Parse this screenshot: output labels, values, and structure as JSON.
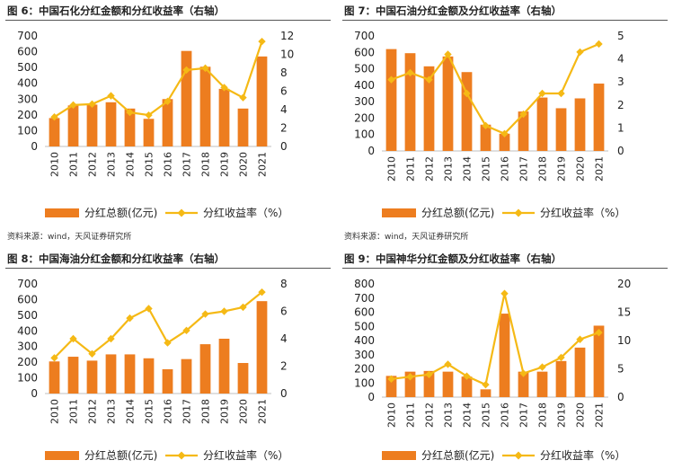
{
  "colors": {
    "bar": "#ed7d1f",
    "line": "#f5b915"
  },
  "source_text": "资料来源：wind，天风证券研究所",
  "chart_data": [
    {
      "type": "bar",
      "title": "图 6：中国石化分红金额和分红收益率（右轴）",
      "categories": [
        "2010",
        "2011",
        "2012",
        "2013",
        "2014",
        "2015",
        "2016",
        "2017",
        "2018",
        "2019",
        "2020",
        "2021"
      ],
      "series": [
        {
          "name": "分红总额(亿元)",
          "type": "bar",
          "axis": "left",
          "values": [
            180,
            260,
            265,
            280,
            240,
            175,
            300,
            605,
            505,
            365,
            240,
            570
          ]
        },
        {
          "name": "分红收益率（%）",
          "type": "line",
          "axis": "right",
          "values": [
            3.2,
            4.5,
            4.6,
            5.5,
            3.7,
            3.4,
            4.9,
            8.3,
            8.5,
            6.4,
            5.3,
            11.4
          ]
        }
      ],
      "ylim": [
        0,
        700
      ],
      "yticks": [
        0,
        100,
        200,
        300,
        400,
        500,
        600,
        700
      ],
      "y2lim": [
        0,
        12
      ],
      "y2ticks": [
        0,
        2,
        4,
        6,
        8,
        10,
        12
      ]
    },
    {
      "type": "bar",
      "title": "图 7：中国石油分红金额及分红收益率（右轴）",
      "categories": [
        "2010",
        "2011",
        "2012",
        "2013",
        "2014",
        "2015",
        "2016",
        "2017",
        "2018",
        "2019",
        "2020",
        "2021"
      ],
      "series": [
        {
          "name": "分红总额(亿元)",
          "type": "bar",
          "axis": "left",
          "values": [
            620,
            595,
            515,
            575,
            480,
            160,
            105,
            240,
            325,
            260,
            320,
            410
          ]
        },
        {
          "name": "分红收益率（%）",
          "type": "line",
          "axis": "right",
          "values": [
            3.1,
            3.4,
            3.1,
            4.2,
            2.5,
            1.1,
            0.75,
            1.6,
            2.5,
            2.5,
            4.3,
            4.65
          ]
        }
      ],
      "ylim": [
        0,
        700
      ],
      "yticks": [
        0,
        100,
        200,
        300,
        400,
        500,
        600,
        700
      ],
      "y2lim": [
        0,
        5
      ],
      "y2ticks": [
        0,
        1,
        2,
        3,
        4,
        5
      ]
    },
    {
      "type": "bar",
      "title": "图 8：中国海油分红金额和分红收益率（右轴）",
      "categories": [
        "2010",
        "2011",
        "2012",
        "2013",
        "2014",
        "2015",
        "2016",
        "2017",
        "2018",
        "2019",
        "2020",
        "2021"
      ],
      "series": [
        {
          "name": "分红总额(亿元)",
          "type": "bar",
          "axis": "left",
          "values": [
            205,
            235,
            210,
            250,
            250,
            225,
            155,
            220,
            315,
            350,
            195,
            590
          ]
        },
        {
          "name": "分红收益率（%）",
          "type": "line",
          "axis": "right",
          "values": [
            2.6,
            4.0,
            2.9,
            4.0,
            5.5,
            6.2,
            3.7,
            4.6,
            5.8,
            6.0,
            6.3,
            7.4
          ]
        }
      ],
      "ylim": [
        0,
        700
      ],
      "yticks": [
        0,
        100,
        200,
        300,
        400,
        500,
        600,
        700
      ],
      "y2lim": [
        0,
        8
      ],
      "y2ticks": [
        0,
        2,
        4,
        6,
        8
      ]
    },
    {
      "type": "bar",
      "title": "图 9：中国神华分红金额及分红收益率（右轴）",
      "categories": [
        "2010",
        "2011",
        "2012",
        "2013",
        "2014",
        "2015",
        "2016",
        "2017",
        "2018",
        "2019",
        "2020",
        "2021"
      ],
      "series": [
        {
          "name": "分红总额(亿元)",
          "type": "bar",
          "axis": "left",
          "values": [
            150,
            180,
            185,
            180,
            145,
            55,
            590,
            180,
            180,
            255,
            350,
            505
          ]
        },
        {
          "name": "分红收益率（%）",
          "type": "line",
          "axis": "right",
          "values": [
            3.2,
            3.6,
            4.0,
            5.8,
            3.7,
            2.2,
            18.3,
            4.2,
            5.3,
            7.0,
            10.2,
            11.4
          ]
        }
      ],
      "ylim": [
        0,
        800
      ],
      "yticks": [
        0,
        100,
        200,
        300,
        400,
        500,
        600,
        700,
        800
      ],
      "y2lim": [
        0,
        20
      ],
      "y2ticks": [
        0,
        5,
        10,
        15,
        20
      ]
    }
  ]
}
